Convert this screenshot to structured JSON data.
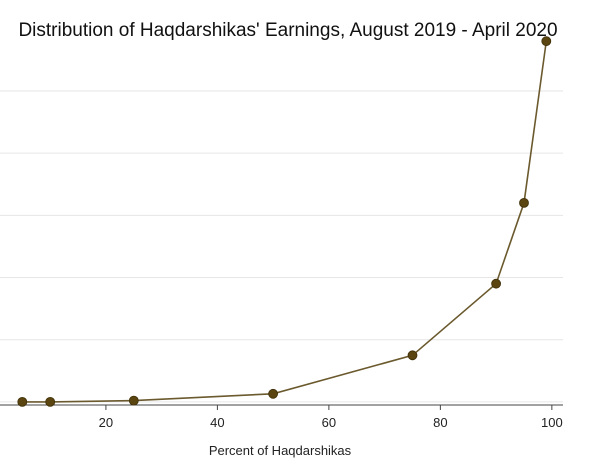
{
  "chart_data": {
    "type": "line",
    "title": "Distribution of Haqdarshikas' Earnings, August 2019 - April 2020",
    "xlabel": "Percent of Haqdarshikas",
    "ylabel": "",
    "xlim": [
      1,
      102
    ],
    "ylim": [
      -5,
      590
    ],
    "xticks": [
      20,
      40,
      60,
      80,
      100
    ],
    "grid": true,
    "legend": "none",
    "colors": {
      "line": "#6b5a2e",
      "marker": "#5a4410",
      "grid": "#e6e6e6",
      "axis": "#444444"
    },
    "series": [
      {
        "x": [
          5,
          10,
          25,
          50,
          75,
          90,
          95,
          99
        ],
        "y": [
          0,
          0,
          2,
          13,
          75,
          190,
          320,
          580
        ]
      }
    ]
  }
}
